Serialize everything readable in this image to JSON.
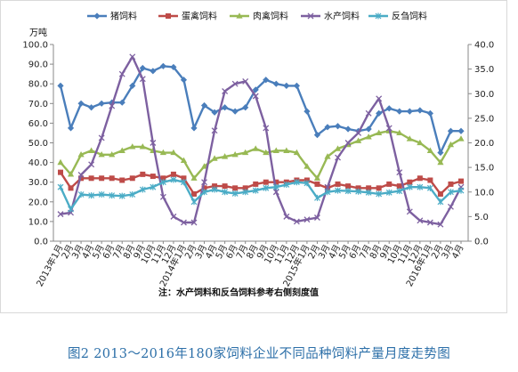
{
  "caption": "图2 2013～2016年180家饲料企业不同品种饲料产量月度走势图",
  "chart_data": {
    "type": "line",
    "left_axis_unit": "万吨",
    "note": "注：水产饲料和反刍饲料参考右侧刻度值",
    "y_left": {
      "range": [
        0,
        100
      ],
      "ticks": [
        "0.0",
        "10.0",
        "20.0",
        "30.0",
        "40.0",
        "50.0",
        "60.0",
        "70.0",
        "80.0",
        "90.0",
        "100.0"
      ]
    },
    "y_right": {
      "range": [
        0,
        40
      ],
      "ticks": [
        "0.0",
        "5.0",
        "10.0",
        "15.0",
        "20.0",
        "25.0",
        "30.0",
        "35.0",
        "40.0"
      ]
    },
    "x_labels": [
      "2013年1月",
      "2月",
      "3月",
      "4月",
      "5月",
      "6月",
      "7月",
      "8月",
      "9月",
      "10月",
      "11月",
      "12月",
      "2014年1月",
      "2月",
      "3月",
      "4月",
      "5月",
      "6月",
      "7月",
      "8月",
      "9月",
      "10月",
      "11月",
      "12月",
      "2015年1月",
      "2月",
      "3月",
      "4月",
      "5月",
      "6月",
      "7月",
      "8月",
      "9月",
      "10月",
      "11月",
      "12月",
      "2016年1月",
      "2月",
      "3月",
      "4月",
      "5月",
      "6月"
    ],
    "grid": false,
    "legend_position": "top",
    "series": [
      {
        "name": "猪饲料",
        "axis": "left",
        "color": "#4a7ebb",
        "marker": "diamond",
        "values": [
          79,
          57.5,
          70,
          68,
          70,
          70.5,
          70.5,
          79,
          88,
          86.5,
          89,
          88.5,
          82,
          57.5,
          69,
          65.5,
          68,
          66,
          68,
          77,
          82,
          80,
          79,
          79,
          66,
          54,
          58,
          58.5,
          57,
          56,
          57,
          65,
          67.5,
          66,
          66,
          66.5,
          65,
          45,
          56,
          56
        ]
      },
      {
        "name": "蛋禽饲料",
        "axis": "left",
        "color": "#be4b48",
        "marker": "square",
        "values": [
          35,
          27,
          32,
          32,
          32,
          32,
          31,
          32,
          34,
          33,
          32,
          34,
          32,
          24,
          27,
          28,
          28,
          27,
          27,
          29,
          30,
          30,
          30,
          31,
          31,
          29,
          27,
          29,
          28,
          27,
          27,
          27,
          29,
          28,
          30,
          32,
          31,
          24,
          29,
          30.5
        ]
      },
      {
        "name": "肉禽饲料",
        "axis": "left",
        "color": "#98b954",
        "marker": "triangle",
        "values": [
          40,
          34,
          44,
          46,
          44,
          44,
          46,
          48,
          48,
          46,
          45,
          45,
          41,
          32,
          38,
          42,
          43,
          44,
          45,
          47,
          45,
          46,
          46,
          45,
          38,
          32,
          43,
          47,
          49,
          51,
          53,
          55,
          56,
          55,
          52,
          50,
          46,
          40,
          49,
          52
        ]
      },
      {
        "name": "水产饲料",
        "axis": "right",
        "color": "#7d60a0",
        "marker": "x",
        "values": [
          5.5,
          5.8,
          13.5,
          15.6,
          21,
          27.5,
          34,
          37.5,
          33,
          20,
          9,
          5,
          3.8,
          3.8,
          12,
          22.5,
          30.5,
          32,
          32.5,
          29.5,
          23,
          10,
          5,
          4,
          4.4,
          4.8,
          11,
          17,
          20,
          22,
          26,
          29,
          23,
          14,
          6,
          4.2,
          3.8,
          3.4,
          7,
          11
        ]
      },
      {
        "name": "反刍饲料",
        "axis": "right",
        "color": "#4bacc6",
        "marker": "asterisk",
        "values": [
          11,
          6.5,
          9.5,
          9.3,
          9.5,
          9.3,
          9.2,
          9.5,
          10.5,
          11,
          12,
          12.5,
          12,
          8,
          10,
          10.5,
          10,
          9.7,
          10,
          10.3,
          10.8,
          11,
          11.5,
          12,
          11.8,
          8.8,
          10,
          10.3,
          10.2,
          10.1,
          9.9,
          9.6,
          9.9,
          10.2,
          11,
          11,
          10.8,
          8,
          10,
          10.3
        ]
      }
    ]
  }
}
